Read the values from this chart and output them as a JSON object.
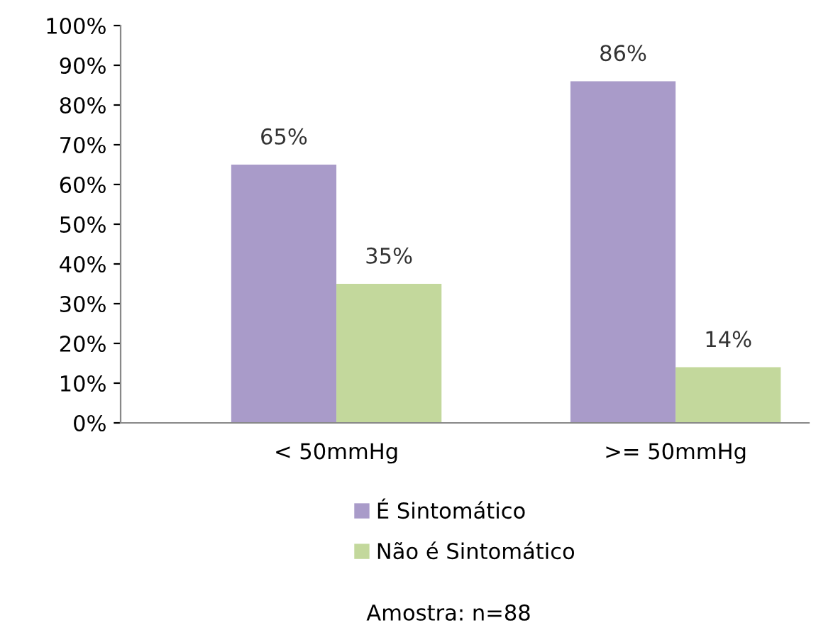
{
  "chart_data": {
    "type": "bar",
    "categories": [
      "< 50mmHg",
      ">= 50mmHg"
    ],
    "series": [
      {
        "name": "É Sintomático",
        "color": "#a99bc9",
        "values": [
          65,
          86
        ],
        "value_labels": [
          "65%",
          "86%"
        ]
      },
      {
        "name": "Não é Sintomático",
        "color": "#c3d89c",
        "values": [
          35,
          14
        ],
        "value_labels": [
          "35%",
          "14%"
        ]
      }
    ],
    "ylim": [
      0,
      100
    ],
    "yticks": [
      {
        "value": 0,
        "label": "0%"
      },
      {
        "value": 10,
        "label": "10%"
      },
      {
        "value": 20,
        "label": "20%"
      },
      {
        "value": 30,
        "label": "30%"
      },
      {
        "value": 40,
        "label": "40%"
      },
      {
        "value": 50,
        "label": "50%"
      },
      {
        "value": 60,
        "label": "60%"
      },
      {
        "value": 70,
        "label": "70%"
      },
      {
        "value": 80,
        "label": "80%"
      },
      {
        "value": 90,
        "label": "90%"
      },
      {
        "value": 100,
        "label": "100%"
      }
    ],
    "grid": false,
    "legend": "bottom",
    "annotations": [
      "Amostra: n=88"
    ]
  }
}
